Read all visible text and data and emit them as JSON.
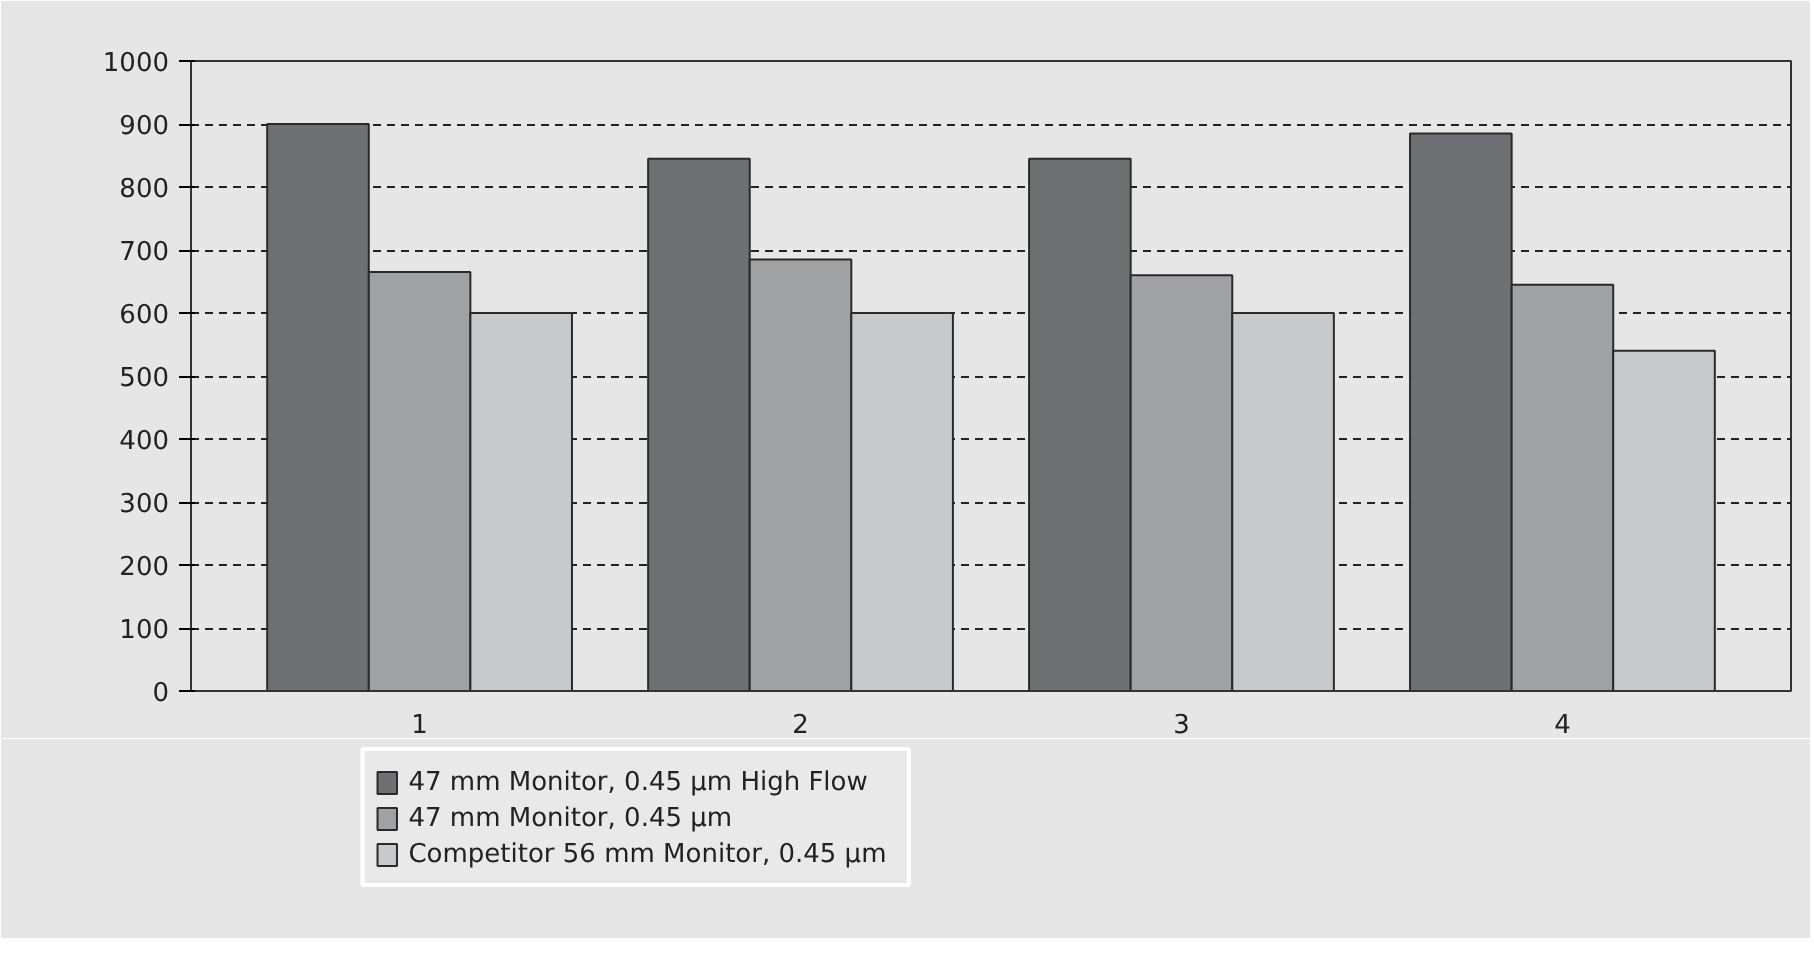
{
  "chart_data": {
    "type": "bar",
    "categories": [
      "1",
      "2",
      "3",
      "4"
    ],
    "series": [
      {
        "name": "47 mm Monitor, 0.45 µm High Flow",
        "color": "#6f7074",
        "values": [
          900,
          845,
          845,
          885
        ]
      },
      {
        "name": "47 mm Monitor, 0.45 µm",
        "color": "#a0a1a3",
        "values": [
          665,
          685,
          660,
          645
        ]
      },
      {
        "name": "Competitor 56 mm Monitor, 0.45 µm",
        "color": "#c8c9cb",
        "values": [
          600,
          600,
          600,
          540
        ]
      }
    ],
    "ylim": [
      0,
      1000
    ],
    "yticks": [
      0,
      100,
      200,
      300,
      400,
      500,
      600,
      700,
      800,
      900,
      1000
    ],
    "grid": "y",
    "legend": "bottom left"
  }
}
